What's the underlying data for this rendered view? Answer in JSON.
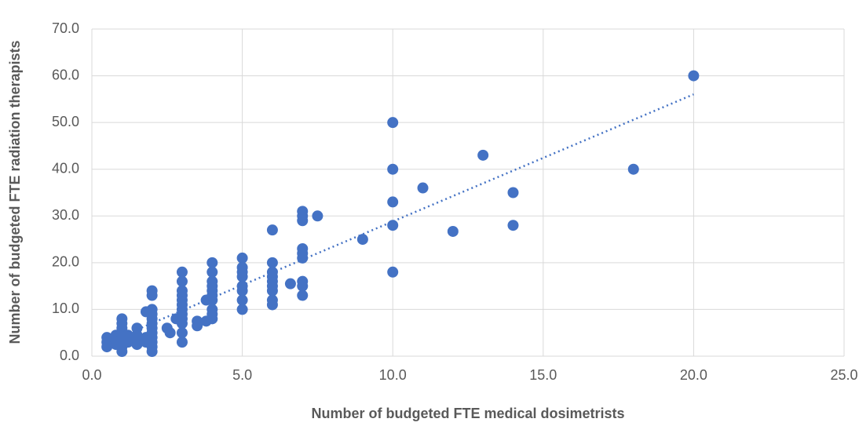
{
  "chart_data": {
    "type": "scatter",
    "x_label": "Number of budgeted FTE medical dosimetrists",
    "y_label": "Number of budgeted FTE radiation therapists",
    "color": "#4472c4",
    "grid": true,
    "trendline": "linear",
    "xlim": [
      0,
      25
    ],
    "ylim": [
      0,
      70
    ],
    "xticks": [
      {
        "value": 0,
        "label": "0.0"
      },
      {
        "value": 5,
        "label": "5.0"
      },
      {
        "value": 10,
        "label": "10.0"
      },
      {
        "value": 15,
        "label": "15.0"
      },
      {
        "value": 20,
        "label": "20.0"
      },
      {
        "value": 25,
        "label": "25.0"
      }
    ],
    "yticks": [
      {
        "value": 0,
        "label": "0.0"
      },
      {
        "value": 10,
        "label": "10.0"
      },
      {
        "value": 20,
        "label": "20.0"
      },
      {
        "value": 30,
        "label": "30.0"
      },
      {
        "value": 40,
        "label": "40.0"
      },
      {
        "value": 50,
        "label": "50.0"
      },
      {
        "value": 60,
        "label": "60.0"
      },
      {
        "value": 70,
        "label": "70.0"
      }
    ],
    "x": [
      0.5,
      0.5,
      0.5,
      0.8,
      0.8,
      0.8,
      1,
      1,
      1,
      1,
      1,
      1,
      1,
      1,
      1.2,
      1.2,
      1.5,
      1.5,
      1.5,
      1.5,
      1.8,
      1.8,
      1.8,
      2,
      2,
      2,
      2,
      2,
      2,
      2,
      2,
      2,
      2,
      2,
      2,
      2.5,
      2.6,
      2.8,
      3,
      3,
      3,
      3,
      3,
      3,
      3,
      3,
      3,
      3,
      3,
      3,
      3.5,
      3.5,
      3.8,
      3.8,
      4,
      4,
      4,
      4,
      4,
      4,
      4,
      4,
      4,
      4,
      5,
      5,
      5,
      5,
      5,
      5,
      5,
      5,
      6,
      6,
      6,
      6,
      6,
      6,
      6,
      6,
      6,
      6.6,
      7,
      7,
      7,
      7,
      7,
      7,
      7,
      7,
      7,
      7.5,
      9,
      10,
      10,
      10,
      10,
      10,
      11,
      12,
      13,
      14,
      14,
      18,
      20
    ],
    "values": [
      2,
      3,
      4,
      2.5,
      3.5,
      4.5,
      1,
      2,
      3,
      4,
      5,
      6,
      7,
      8,
      3,
      4.5,
      2.5,
      3.5,
      4.5,
      6,
      3,
      4,
      9.5,
      1,
      2,
      3,
      4,
      5,
      6,
      7,
      8,
      9,
      10,
      13,
      14,
      6,
      5,
      8,
      3,
      5,
      7,
      8,
      9,
      10,
      11,
      12,
      13,
      14,
      16,
      18,
      6.5,
      7.5,
      7.5,
      12,
      8,
      9,
      10,
      12,
      13,
      14,
      15,
      16,
      18,
      20,
      10,
      12,
      14,
      15,
      17,
      18,
      19,
      21,
      11,
      12,
      14,
      15,
      16,
      17,
      18,
      20,
      27,
      15.5,
      13,
      15,
      16,
      21,
      22,
      23,
      29,
      30,
      31,
      30,
      25,
      18,
      28,
      33,
      40,
      50,
      36,
      26.7,
      43,
      28,
      35,
      40,
      60
    ]
  }
}
